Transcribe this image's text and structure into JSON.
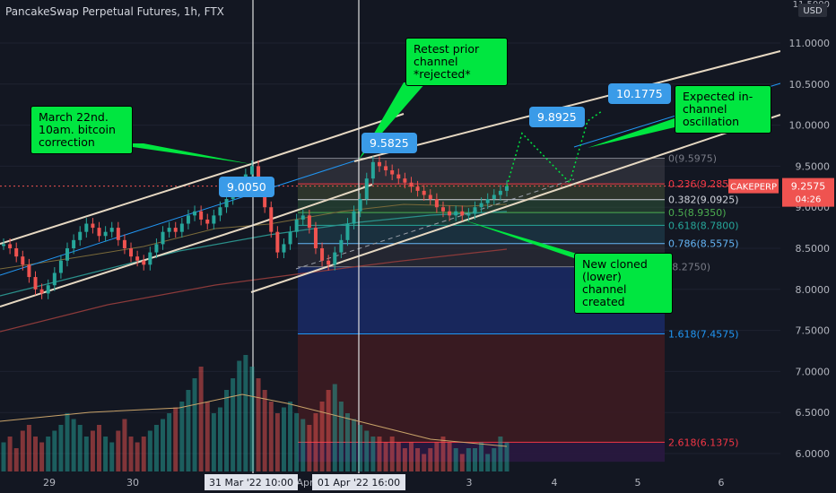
{
  "header": {
    "title": "PancakeSwap Perpetual Futures, 1h, FTX"
  },
  "colors": {
    "background": "#131722",
    "channel": "#e6d8c2",
    "midline": "#2196f3",
    "fib_fill_upper": "#787b86",
    "fib_fill_lower": "#3f51b5",
    "fib_fill_deep": "#b71c1c",
    "up_candle": "#26a69a",
    "down_candle": "#ef5350",
    "callout": "#00e640",
    "label_blue": "#3a9be8",
    "current_price": "#ef5350"
  },
  "price_axis": {
    "currency": "USD",
    "top_label": "11.5000",
    "ticks": [
      "11.0000",
      "10.5000",
      "10.0000",
      "9.5000",
      "9.0000",
      "8.5000",
      "8.0000",
      "7.5000",
      "7.0000",
      "6.5000",
      "6.0000"
    ],
    "current_price": "9.2575",
    "countdown": "04:26",
    "symbol_tag": "CAKEPERP"
  },
  "time_axis": {
    "ticks": [
      "29",
      "30",
      "31 Mar '22",
      "10:00",
      "Apr",
      "01 Apr '22",
      "16:00",
      "3",
      "4",
      "5",
      "6"
    ],
    "crosshair_labels": [
      "31 Mar '22   10:00",
      "01 Apr '22   16:00"
    ]
  },
  "fib_levels": [
    {
      "ratio": "0",
      "value": "9.5975",
      "label": "0(9.5975)",
      "color": "#787b86"
    },
    {
      "ratio": "0.236",
      "value": "9.2850",
      "label": "0.236(9.2850)",
      "color": "#f23645"
    },
    {
      "ratio": "0.382",
      "value": "9.0925",
      "label": "0.382(9.0925)",
      "color": "#d1d4dc"
    },
    {
      "ratio": "0.5",
      "value": "8.9350",
      "label": "0.5(8.9350)",
      "color": "#4caf50"
    },
    {
      "ratio": "0.618",
      "value": "8.7800",
      "label": "0.618(8.7800)",
      "color": "#26a69a"
    },
    {
      "ratio": "0.786",
      "value": "8.5575",
      "label": "0.786(8.5575)",
      "color": "#64b5f6"
    },
    {
      "ratio": "1",
      "value": "8.2750",
      "label": "(8.2750)",
      "color": "#787b86"
    },
    {
      "ratio": "1.618",
      "value": "7.4575",
      "label": "1.618(7.4575)",
      "color": "#2196f3"
    },
    {
      "ratio": "2.618",
      "value": "6.1375",
      "label": "2.618(6.1375)",
      "color": "#f23645"
    }
  ],
  "annotations": {
    "callout_march": "March 22nd.\n10am. bitcoin\ncorrection",
    "callout_retest": "Retest prior\nchannel\n*rejected*",
    "callout_expected": "Expected in-\nchannel\noscillation",
    "callout_cloned": "New cloned\n(lower)\nchannel\ncreated",
    "label_95825": "9.5825",
    "label_9050": "9.0050",
    "label_98925": "9.8925",
    "label_101775": "10.1775"
  },
  "chart_data": {
    "type": "candlestick",
    "title": "PancakeSwap Perpetual Futures, 1h, FTX",
    "ylim": [
      5.8,
      11.6
    ],
    "x_labels": [
      "29",
      "30",
      "31 Mar '22",
      "Apr",
      "01 Apr '22",
      "3",
      "4",
      "5",
      "6"
    ],
    "price_path": [
      8.55,
      8.5,
      8.4,
      8.3,
      8.15,
      8.0,
      7.95,
      8.05,
      8.2,
      8.35,
      8.5,
      8.6,
      8.7,
      8.8,
      8.75,
      8.65,
      8.7,
      8.75,
      8.6,
      8.5,
      8.4,
      8.35,
      8.3,
      8.45,
      8.55,
      8.7,
      8.75,
      8.7,
      8.8,
      8.9,
      8.95,
      8.85,
      8.8,
      8.9,
      9.0,
      9.1,
      9.2,
      9.3,
      9.4,
      9.5,
      9.3,
      9.0,
      8.7,
      8.45,
      8.55,
      8.7,
      8.85,
      8.9,
      8.75,
      8.5,
      8.35,
      8.3,
      8.45,
      8.6,
      8.8,
      8.95,
      9.1,
      9.35,
      9.55,
      9.5,
      9.45,
      9.4,
      9.35,
      9.3,
      9.25,
      9.2,
      9.15,
      9.1,
      9.0,
      8.95,
      8.9,
      8.95,
      8.9,
      8.92,
      9.0,
      9.05,
      9.1,
      9.15,
      9.2,
      9.2575
    ],
    "volume_path": [
      0.25,
      0.3,
      0.2,
      0.35,
      0.4,
      0.3,
      0.25,
      0.3,
      0.35,
      0.4,
      0.5,
      0.45,
      0.4,
      0.3,
      0.35,
      0.4,
      0.3,
      0.25,
      0.35,
      0.45,
      0.3,
      0.25,
      0.3,
      0.35,
      0.4,
      0.45,
      0.5,
      0.55,
      0.6,
      0.7,
      0.8,
      0.9,
      0.6,
      0.5,
      0.55,
      0.7,
      0.8,
      0.95,
      1.0,
      0.9,
      0.8,
      0.7,
      0.6,
      0.5,
      0.55,
      0.6,
      0.5,
      0.45,
      0.4,
      0.5,
      0.6,
      0.7,
      0.75,
      0.6,
      0.5,
      0.45,
      0.4,
      0.35,
      0.3,
      0.3,
      0.25,
      0.3,
      0.25,
      0.2,
      0.25,
      0.2,
      0.15,
      0.2,
      0.25,
      0.3,
      0.25,
      0.2,
      0.15,
      0.2,
      0.2,
      0.25,
      0.15,
      0.2,
      0.3,
      0.25
    ],
    "current_price": 9.2575,
    "projection": [
      9.2575,
      9.8925,
      9.3,
      10.1775
    ],
    "fib_retracement": {
      "high": 9.5975,
      "low": 8.275
    },
    "grid": true,
    "legend": "none"
  }
}
